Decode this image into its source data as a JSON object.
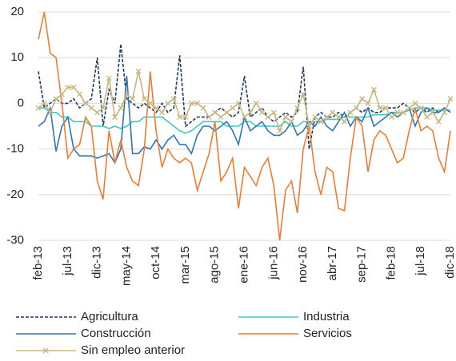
{
  "chart_data": {
    "type": "line",
    "categories": [
      "feb-13",
      null,
      null,
      null,
      null,
      "jul-13",
      null,
      null,
      null,
      null,
      "dic-13",
      null,
      null,
      null,
      null,
      "may-14",
      null,
      null,
      null,
      null,
      "oct-14",
      null,
      null,
      null,
      null,
      "mar-15",
      null,
      null,
      null,
      null,
      "ago-15",
      null,
      null,
      null,
      null,
      "ene-16",
      null,
      null,
      null,
      null,
      "jun-16",
      null,
      null,
      null,
      null,
      "nov-16",
      null,
      null,
      null,
      null,
      "abr-17",
      null,
      null,
      null,
      null,
      "sep-17",
      null,
      null,
      null,
      null,
      "feb-18",
      null,
      null,
      null,
      null,
      "jul-18",
      null,
      null,
      null,
      null,
      "dic-18"
    ],
    "series": [
      {
        "name": "Agricultura",
        "color": "#1f3864",
        "dash": true,
        "values": [
          7,
          -1,
          0,
          1,
          0,
          0,
          1,
          -1,
          0,
          1,
          10,
          -5,
          3,
          0,
          13,
          1,
          0,
          -1,
          0,
          -1,
          -2,
          0,
          -2,
          -1,
          10.5,
          -5,
          -4,
          -3,
          -3,
          -3,
          -2,
          -1,
          -2,
          -3,
          -2,
          6,
          -3,
          -2,
          -1,
          -3,
          -4,
          -3,
          -2,
          -3,
          -2,
          8,
          -10,
          -3,
          -2,
          -3,
          -3,
          -2,
          -3,
          -2,
          -1,
          -2,
          -1,
          -2,
          -2,
          -1,
          -1,
          -1,
          0,
          -1,
          -2,
          -1,
          -2,
          -1,
          -2,
          -1,
          -2
        ]
      },
      {
        "name": "Industria",
        "color": "#3ec8c0",
        "values": [
          -1,
          -1,
          -2,
          -2,
          -3,
          -3,
          -4,
          -4,
          -4,
          -5,
          -5,
          -5,
          -5.5,
          -5,
          -5.5,
          -5,
          -4,
          -4,
          -3,
          -3,
          -3,
          -3,
          -4,
          -5,
          -6,
          -6.5,
          -6,
          -5,
          -4,
          -4,
          -4,
          -4,
          -5,
          -5,
          -5,
          -4,
          -4,
          -5,
          -5,
          -5,
          -5,
          -5,
          -4,
          -5,
          -5,
          -4,
          -4,
          -4,
          -4,
          -3.5,
          -3.5,
          -3.5,
          -3,
          -3,
          -3,
          -3,
          -3,
          -2.5,
          -2.5,
          -2.5,
          -2,
          -2,
          -2,
          -1.5,
          -1,
          -1,
          -1,
          -1.5,
          -1.5,
          -1.5,
          -1.5
        ]
      },
      {
        "name": "Construcción",
        "color": "#2e75b6",
        "values": [
          -5,
          -4,
          -1,
          -10.5,
          -5,
          -3,
          -10,
          -11.5,
          -11.5,
          -11.5,
          -12,
          -11.5,
          -11,
          -13,
          -10,
          6,
          -11,
          -11,
          -9.5,
          -10,
          -8,
          -10,
          -8,
          -7,
          -9,
          -9,
          -11,
          -7,
          -5,
          -5,
          -6,
          -5,
          -4,
          -6,
          -9,
          -3,
          -6,
          -5,
          -4,
          -6,
          -7,
          -7,
          -6,
          -4,
          -7,
          -6,
          -4,
          -5,
          -3,
          -5,
          -6,
          -4,
          -2,
          -5,
          -3,
          -4,
          -1,
          -5,
          -4,
          -3,
          -2,
          -3,
          -2,
          -1,
          -5,
          -2,
          -1,
          -2,
          -2,
          -1,
          -2
        ]
      },
      {
        "name": "Servicios",
        "color": "#ed7d31",
        "values": [
          14,
          20,
          11,
          10,
          0,
          -12,
          -10,
          -9,
          -3,
          -5,
          -17,
          -21,
          -6,
          -13,
          -8,
          -14,
          -17,
          -18,
          -10,
          7,
          -6,
          -14,
          -10,
          -12,
          -13,
          -12,
          -13,
          -19,
          -15,
          -11,
          -4,
          -17,
          -15,
          -12,
          -23,
          -14,
          -16,
          -18,
          -14,
          -12,
          -18,
          -30,
          -19,
          -17,
          -24,
          -10,
          -5,
          -15,
          -20,
          -14,
          -15,
          -23,
          -23.5,
          -12,
          -3,
          -5,
          -15,
          -8,
          -6,
          -7,
          -10,
          -13,
          -12,
          -6,
          -1,
          -6,
          -5,
          -6,
          -12,
          -15,
          -6
        ]
      },
      {
        "name": "Sin empleo anterior",
        "color": "#c8b77e",
        "marker": "x",
        "values": [
          -1,
          0,
          -2,
          1,
          2,
          3.5,
          3.5,
          2,
          0,
          -1,
          -2,
          -1,
          5.5,
          -3,
          -1,
          2,
          1,
          7,
          1,
          0,
          -1,
          -2,
          0,
          1,
          -3,
          -3,
          0,
          0,
          -1,
          -3,
          -2,
          -3,
          -2,
          -1,
          0,
          -3,
          -2,
          0,
          -2,
          -3,
          -2,
          -6,
          -3,
          -4,
          -1,
          2,
          -5,
          -3,
          -4,
          -3,
          -2,
          -3,
          -4,
          -2,
          -1,
          1,
          0,
          3,
          -1,
          -1,
          -3,
          -2,
          -2,
          -1,
          0,
          -1,
          -3,
          -2,
          -4,
          -2,
          1
        ]
      }
    ],
    "ylim": [
      -30,
      20
    ],
    "yticks": [
      -30,
      -20,
      -10,
      0,
      10,
      20
    ],
    "grid": true
  }
}
